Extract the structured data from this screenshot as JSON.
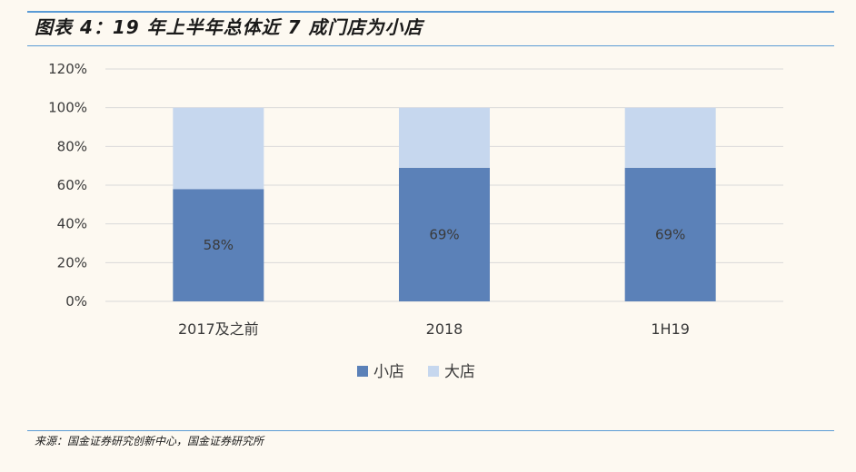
{
  "figure": {
    "title": "图表 4：19 年上半年总体近 7 成门店为小店",
    "source": "来源：国金证券研究创新中心，国金证券研究所"
  },
  "colors": {
    "small_store": "#5b81b8",
    "large_store": "#c6d7ee",
    "rule": "#5a9bd5",
    "grid": "#d9d9d9"
  },
  "chart_data": {
    "type": "bar",
    "stacked": true,
    "categories": [
      "2017及之前",
      "2018",
      "1H19"
    ],
    "series": [
      {
        "name": "小店",
        "values": [
          58,
          69,
          69
        ],
        "labels": [
          "58%",
          "69%",
          "69%"
        ]
      },
      {
        "name": "大店",
        "values": [
          42,
          31,
          31
        ]
      }
    ],
    "ylim": [
      0,
      120
    ],
    "yticks": [
      {
        "value": 0,
        "label": "0%"
      },
      {
        "value": 20,
        "label": "20%"
      },
      {
        "value": 40,
        "label": "40%"
      },
      {
        "value": 60,
        "label": "60%"
      },
      {
        "value": 80,
        "label": "80%"
      },
      {
        "value": 100,
        "label": "100%"
      },
      {
        "value": 120,
        "label": "120%"
      }
    ],
    "grid": true,
    "legend_position": "bottom"
  }
}
